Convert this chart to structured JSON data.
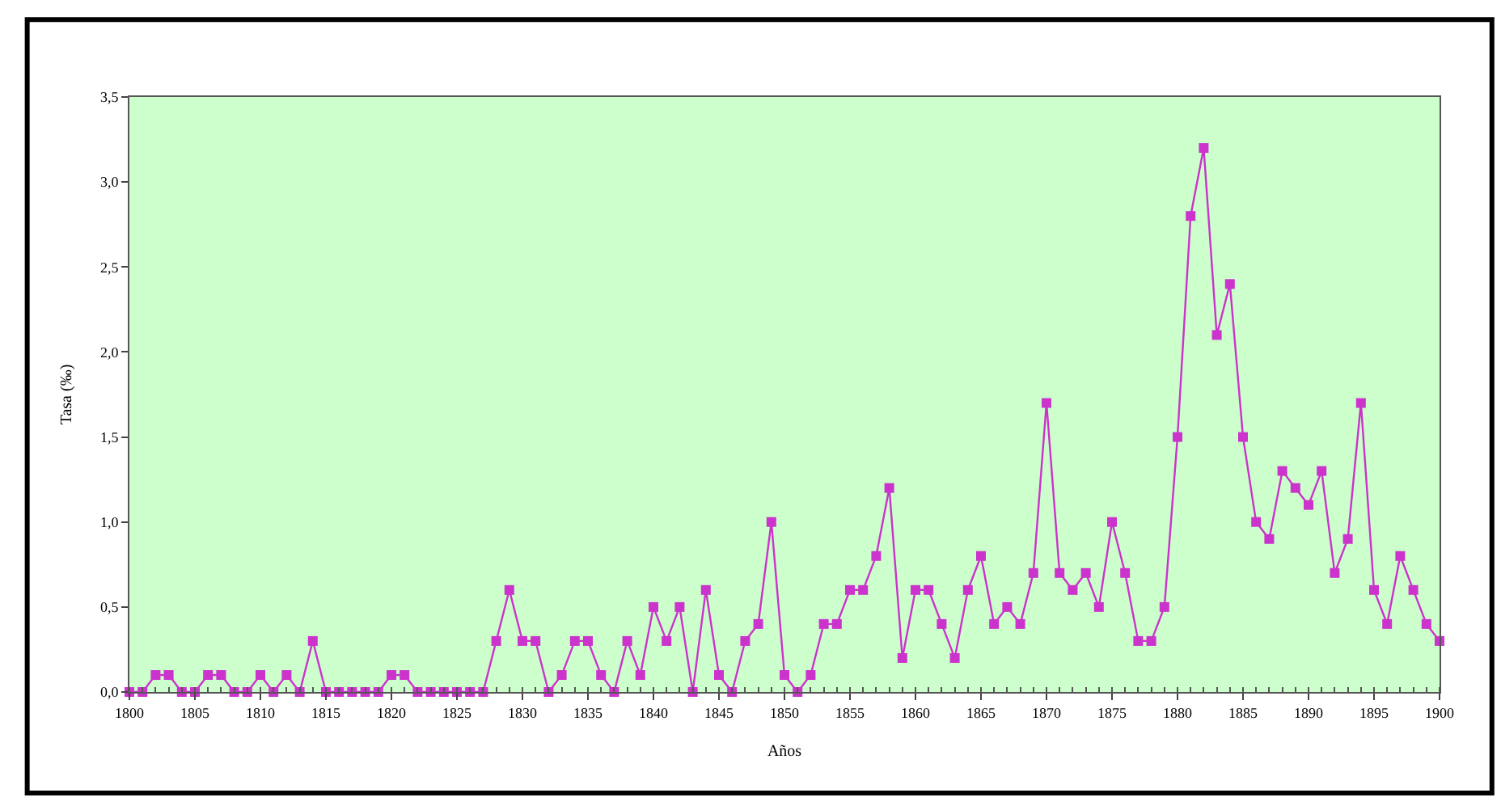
{
  "chart_data": {
    "type": "line",
    "xlabel": "Años",
    "ylabel": "Tasa (‰)",
    "x": [
      1800,
      1801,
      1802,
      1803,
      1804,
      1805,
      1806,
      1807,
      1808,
      1809,
      1810,
      1811,
      1812,
      1813,
      1814,
      1815,
      1816,
      1817,
      1818,
      1819,
      1820,
      1821,
      1822,
      1823,
      1824,
      1825,
      1826,
      1827,
      1828,
      1829,
      1830,
      1831,
      1832,
      1833,
      1834,
      1835,
      1836,
      1837,
      1838,
      1839,
      1840,
      1841,
      1842,
      1843,
      1844,
      1845,
      1846,
      1847,
      1848,
      1849,
      1850,
      1851,
      1852,
      1853,
      1854,
      1855,
      1856,
      1857,
      1858,
      1859,
      1860,
      1861,
      1862,
      1863,
      1864,
      1865,
      1866,
      1867,
      1868,
      1869,
      1870,
      1871,
      1872,
      1873,
      1874,
      1875,
      1876,
      1877,
      1878,
      1879,
      1880,
      1881,
      1882,
      1883,
      1884,
      1885,
      1886,
      1887,
      1888,
      1889,
      1890,
      1891,
      1892,
      1893,
      1894,
      1895,
      1896,
      1897,
      1898,
      1899,
      1900
    ],
    "series": [
      {
        "color": "#cc33cc",
        "values": [
          0,
          0,
          0.1,
          0.1,
          0,
          0,
          0.1,
          0.1,
          0,
          0,
          0.1,
          0,
          0.1,
          0,
          0.3,
          0,
          0,
          0,
          0,
          0,
          0.1,
          0.1,
          0,
          0,
          0,
          0,
          0,
          0,
          0.3,
          0.6,
          0.3,
          0.3,
          0,
          0.1,
          0.3,
          0.3,
          0.1,
          0,
          0.3,
          0.1,
          0.5,
          0.3,
          0.5,
          0,
          0.6,
          0.1,
          0,
          0.3,
          0.4,
          1.0,
          0.1,
          0,
          0.1,
          0.4,
          0.4,
          0.6,
          0.6,
          0.8,
          1.2,
          0.2,
          0.6,
          0.6,
          0.4,
          0.2,
          0.6,
          0.8,
          0.4,
          0.5,
          0.4,
          0.7,
          1.7,
          0.7,
          0.6,
          0.7,
          0.5,
          1.0,
          0.7,
          0.3,
          0.3,
          0.5,
          1.5,
          2.8,
          3.2,
          2.1,
          2.4,
          1.5,
          1.0,
          0.9,
          1.3,
          1.2,
          1.1,
          1.3,
          0.7,
          0.9,
          1.7,
          0.6,
          0.4,
          0.8,
          0.6,
          0.4,
          0.3
        ]
      }
    ],
    "xlim": [
      1800,
      1900
    ],
    "xticks": [
      1800,
      1805,
      1810,
      1815,
      1820,
      1825,
      1830,
      1835,
      1840,
      1845,
      1850,
      1855,
      1860,
      1865,
      1870,
      1875,
      1880,
      1885,
      1890,
      1895,
      1900
    ],
    "ylim": [
      0,
      3.5
    ],
    "yticks": [
      {
        "value": 0,
        "label": "0,0"
      },
      {
        "value": 0.5,
        "label": "0,5"
      },
      {
        "value": 1,
        "label": "1,0"
      },
      {
        "value": 1.5,
        "label": "1,5"
      },
      {
        "value": 2,
        "label": "2,0"
      },
      {
        "value": 2.5,
        "label": "2,5"
      },
      {
        "value": 3,
        "label": "3,0"
      },
      {
        "value": 3.5,
        "label": "3,5"
      }
    ],
    "grid": false,
    "marker": "square",
    "line_style": "solid"
  }
}
